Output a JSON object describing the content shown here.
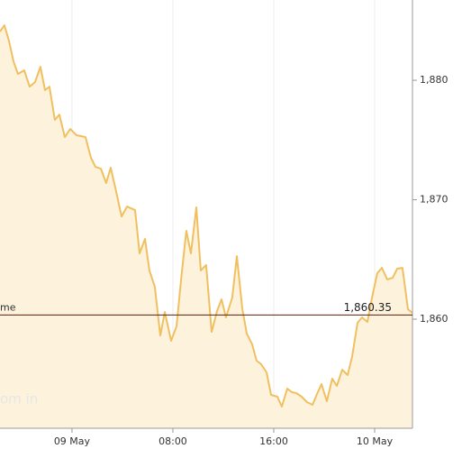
{
  "chart_data": {
    "type": "area",
    "x": [
      -5.71,
      -5.36,
      -5.0,
      -4.64,
      -4.29,
      -3.79,
      -3.36,
      -2.93,
      -2.5,
      -2.14,
      -1.79,
      -1.36,
      -1.0,
      -0.57,
      -0.14,
      0.36,
      1.07,
      1.5,
      1.86,
      2.29,
      2.71,
      3.07,
      3.43,
      3.93,
      4.36,
      5.0,
      5.36,
      5.79,
      6.14,
      6.57,
      7.0,
      7.36,
      7.86,
      8.29,
      8.71,
      9.07,
      9.43,
      9.86,
      10.21,
      10.64,
      11.07,
      11.5,
      11.86,
      12.21,
      12.71,
      13.07,
      13.5,
      13.86,
      14.29,
      14.64,
      15.0,
      15.43,
      15.79,
      16.29,
      16.64,
      17.07,
      17.43,
      17.79,
      18.21,
      18.64,
      19.07,
      19.43,
      19.79,
      20.21,
      20.64,
      21.0,
      21.43,
      21.86,
      22.21,
      22.64,
      23.0,
      23.43,
      23.79,
      24.21,
      24.57,
      25.0,
      25.43,
      25.79,
      26.21,
      26.64,
      27.0
    ],
    "series": [
      {
        "color": "#f0c060",
        "fill": "#fdf2dc",
        "values": [
          1884.08,
          1884.6,
          1883.32,
          1881.58,
          1880.53,
          1880.83,
          1879.47,
          1879.85,
          1881.13,
          1879.17,
          1879.47,
          1876.68,
          1877.13,
          1875.25,
          1875.92,
          1875.4,
          1875.25,
          1873.51,
          1872.75,
          1872.6,
          1871.4,
          1872.68,
          1871.02,
          1868.6,
          1869.43,
          1869.13,
          1865.51,
          1866.72,
          1864.08,
          1862.72,
          1858.64,
          1860.6,
          1858.19,
          1859.4,
          1863.92,
          1867.4,
          1865.51,
          1869.36,
          1864.08,
          1864.53,
          1858.94,
          1860.68,
          1861.66,
          1860.15,
          1861.81,
          1865.28,
          1860.91,
          1858.79,
          1857.89,
          1856.53,
          1856.23,
          1855.55,
          1853.66,
          1853.51,
          1852.68,
          1854.19,
          1853.89,
          1853.81,
          1853.51,
          1853.06,
          1852.83,
          1853.74,
          1854.57,
          1853.13,
          1855.02,
          1854.42,
          1855.77,
          1855.32,
          1856.83,
          1859.7,
          1860.15,
          1859.77,
          1861.81,
          1863.85,
          1864.3,
          1863.32,
          1863.47,
          1864.23,
          1864.3,
          1860.83,
          1860.53
        ]
      }
    ],
    "xlim": [
      -5.71,
      27.0
    ],
    "xticks": [
      {
        "value": 0,
        "label": "09 May"
      },
      {
        "value": 8,
        "label": "08:00"
      },
      {
        "value": 16,
        "label": "16:00"
      },
      {
        "value": 24,
        "label": "10 May"
      }
    ],
    "ylim": [
      1850.87,
      1886.72
    ],
    "yticks": [
      {
        "value": 1860,
        "label": "1,860"
      },
      {
        "value": 1870,
        "label": "1,870"
      },
      {
        "value": 1880,
        "label": "1,880"
      }
    ],
    "reference_line": {
      "value": 1860.35,
      "label": "1,860.35",
      "color": "#5a1e0e"
    },
    "annotations": [
      "me",
      "om in"
    ],
    "grid": true
  }
}
